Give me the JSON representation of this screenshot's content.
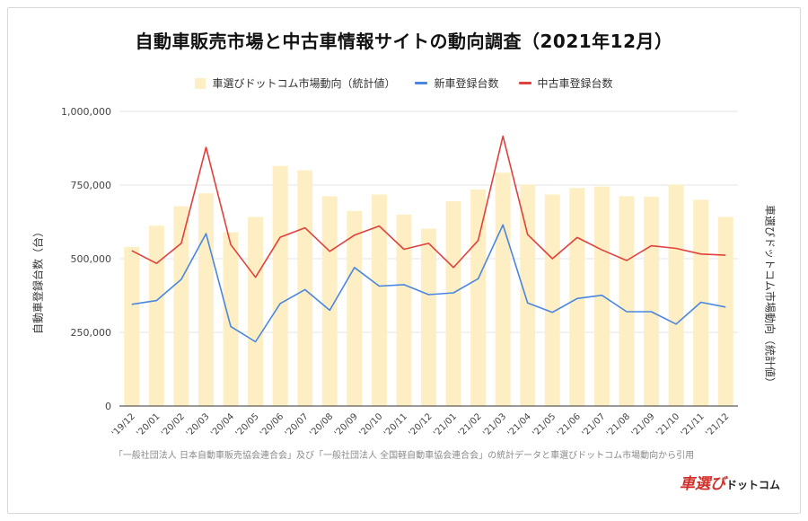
{
  "title": "自動車販売市場と中古車情報サイトの動向調査（2021年12月）",
  "legend": {
    "bar_label": "車選びドットコム市場動向（統計値）",
    "new_label": "新車登録台数",
    "used_label": "中古車登録台数"
  },
  "left_axis_label": "自動車登録台数（台）",
  "right_axis_label": "車選びドットコム市場動向（統計値）",
  "source": "「一般社団法人 日本自動車販売協会連合会」及び「一般社団法人 全国軽自動車協会連合会」の統計データと車選びドットコム市場動向から引用",
  "logo": {
    "main": "車選び",
    "sub": "ドットコム"
  },
  "colors": {
    "bar": "#fdefc3",
    "new": "#4a86e0",
    "used": "#e0413d",
    "grid": "#e4e4e4",
    "axis": "#555555"
  },
  "chart_data": {
    "type": "bar",
    "title": "自動車販売市場と中古車情報サイトの動向調査（2021年12月）",
    "xlabel": "",
    "ylabel": "自動車登録台数（台）",
    "ylim": [
      0,
      1000000
    ],
    "y_ticks": [
      0,
      250000,
      500000,
      750000,
      1000000
    ],
    "y_tick_labels": [
      "0",
      "250,000",
      "500,000",
      "750,000",
      "1,000,000"
    ],
    "grid": true,
    "legend_position": "top",
    "categories": [
      "'19/12",
      "'20/01",
      "'20/02",
      "'20/03",
      "'20/04",
      "'20/05",
      "'20/06",
      "'20/07",
      "'20/08",
      "'20/09",
      "'20/10",
      "'20/11",
      "'20/12",
      "'21/01",
      "'21/02",
      "'21/03",
      "'21/04",
      "'21/05",
      "'21/06",
      "'21/07",
      "'21/08",
      "'21/09",
      "'21/10",
      "'21/11",
      "'21/12"
    ],
    "series": [
      {
        "name": "車選びドットコム市場動向（統計値）",
        "kind": "bar",
        "axis": "right",
        "values": [
          540000,
          612000,
          678000,
          722000,
          590000,
          642000,
          815000,
          800000,
          712000,
          662000,
          718000,
          650000,
          602000,
          695000,
          735000,
          792000,
          752000,
          718000,
          740000,
          745000,
          712000,
          710000,
          752000,
          700000,
          642000
        ]
      },
      {
        "name": "新車登録台数",
        "kind": "line",
        "axis": "left",
        "values": [
          345000,
          358000,
          430000,
          585000,
          270000,
          218000,
          348000,
          395000,
          325000,
          470000,
          407000,
          412000,
          378000,
          384000,
          432000,
          615000,
          350000,
          318000,
          365000,
          376000,
          320000,
          320000,
          278000,
          352000,
          336000
        ]
      },
      {
        "name": "中古車登録台数",
        "kind": "line",
        "axis": "left",
        "values": [
          527000,
          484000,
          552000,
          878000,
          548000,
          437000,
          573000,
          605000,
          525000,
          580000,
          611000,
          532000,
          552000,
          470000,
          562000,
          916000,
          582000,
          500000,
          572000,
          530000,
          494000,
          544000,
          535000,
          516000,
          512000
        ]
      }
    ]
  }
}
